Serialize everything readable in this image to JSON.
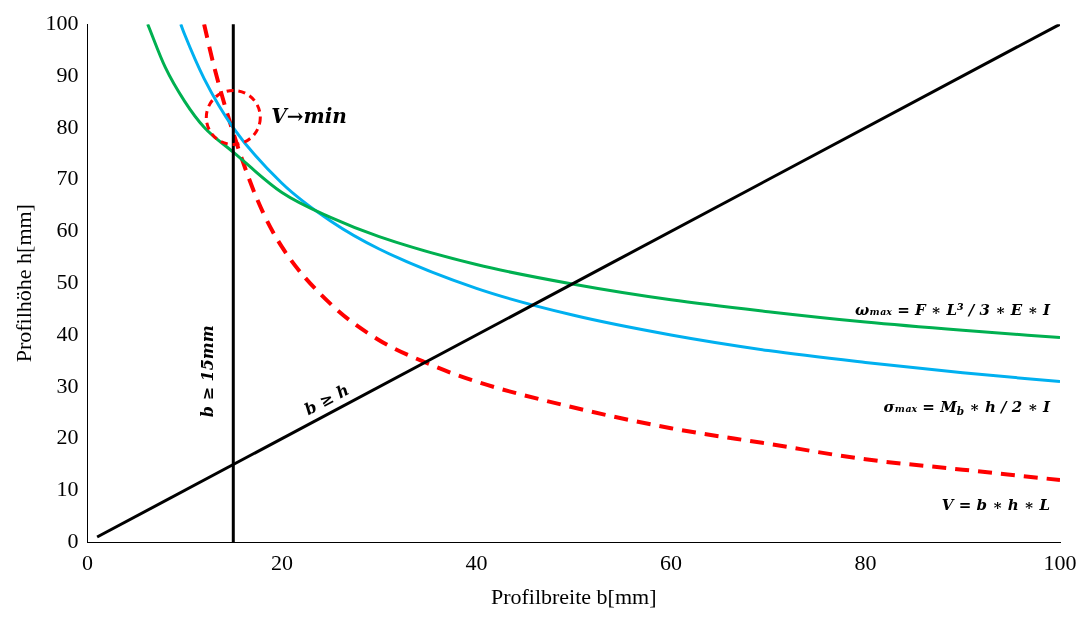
{
  "chart_data": {
    "type": "line",
    "xlabel": "Profilbreite b[mm]",
    "ylabel": "Profilhöhe h[mm]",
    "xlim": [
      0,
      100
    ],
    "ylim": [
      0,
      100
    ],
    "xticks": [
      0,
      20,
      40,
      60,
      80,
      100
    ],
    "yticks": [
      0,
      10,
      20,
      30,
      40,
      50,
      60,
      70,
      80,
      90,
      100
    ],
    "grid": false,
    "legend": false,
    "marker": "none",
    "series": [
      {
        "name": "b ≥ h",
        "color": "#000000",
        "x": [
          1,
          100
        ],
        "values": [
          1,
          100
        ]
      },
      {
        "name": "ωₘₐₓ = F ∗ L³ / 3 ∗ E ∗ I",
        "color": "#00b050",
        "x": [
          6.2,
          8,
          10,
          12,
          15,
          20,
          25,
          30,
          40,
          50,
          60,
          70,
          80,
          90,
          100
        ],
        "values": [
          100,
          91.7,
          85.1,
          80.1,
          75.3,
          67.5,
          62.7,
          59,
          53.6,
          49.8,
          46.8,
          44.5,
          42.5,
          40.9,
          39.5
        ]
      },
      {
        "name": "σₘₐₓ = M$_{b}$ ∗ h / 2 ∗ I",
        "color": "#00b0f0",
        "x": [
          9.6,
          10,
          12,
          15,
          20,
          25,
          30,
          40,
          50,
          60,
          70,
          80,
          90,
          100
        ],
        "values": [
          100,
          98,
          89.5,
          80,
          69.3,
          62,
          56.6,
          49,
          43.8,
          40,
          37,
          34.7,
          32.7,
          31
        ]
      },
      {
        "name": "V = b ∗ h ∗ L",
        "color": "#ff0000",
        "line_style": "dashed",
        "x": [
          12,
          13,
          15,
          17.5,
          20,
          25,
          30,
          35,
          40,
          50,
          60,
          70,
          80,
          90,
          100
        ],
        "values": [
          100,
          92,
          79,
          66,
          57,
          46,
          39,
          34.5,
          31,
          26,
          22,
          19,
          16,
          14,
          12
        ]
      }
    ],
    "ref_lines": [
      {
        "axis": "x",
        "value": 15,
        "label": "b ≥ 15mm",
        "color": "#000000"
      }
    ],
    "annotations": [
      {
        "text": "V→min",
        "x": 15,
        "y": 82
      }
    ]
  }
}
